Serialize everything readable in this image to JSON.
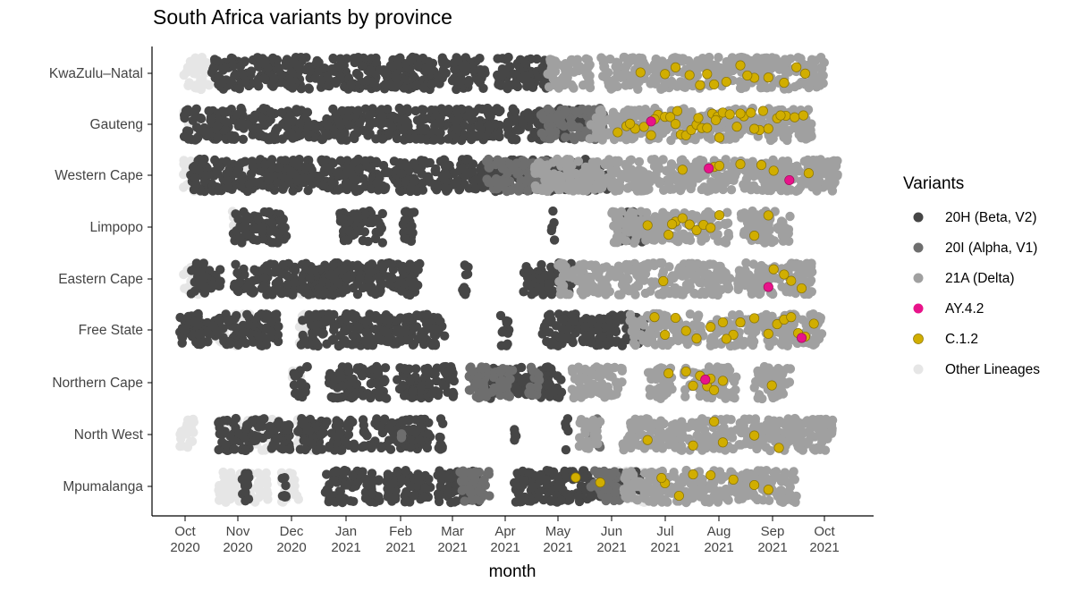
{
  "chart_data": {
    "type": "scatter",
    "title": "South Africa variants by province",
    "xlabel": "month",
    "ylabel": "",
    "x_ticks": [
      {
        "date": "2020-10-01",
        "label": [
          "Oct",
          "2020"
        ]
      },
      {
        "date": "2020-11-01",
        "label": [
          "Nov",
          "2020"
        ]
      },
      {
        "date": "2020-12-01",
        "label": [
          "Dec",
          "2020"
        ]
      },
      {
        "date": "2021-01-01",
        "label": [
          "Jan",
          "2021"
        ]
      },
      {
        "date": "2021-02-01",
        "label": [
          "Feb",
          "2021"
        ]
      },
      {
        "date": "2021-03-01",
        "label": [
          "Mar",
          "2021"
        ]
      },
      {
        "date": "2021-04-01",
        "label": [
          "Apr",
          "2021"
        ]
      },
      {
        "date": "2021-05-01",
        "label": [
          "May",
          "2021"
        ]
      },
      {
        "date": "2021-06-01",
        "label": [
          "Jun",
          "2021"
        ]
      },
      {
        "date": "2021-07-01",
        "label": [
          "Jul",
          "2021"
        ]
      },
      {
        "date": "2021-08-01",
        "label": [
          "Aug",
          "2021"
        ]
      },
      {
        "date": "2021-09-01",
        "label": [
          "Sep",
          "2021"
        ]
      },
      {
        "date": "2021-10-01",
        "label": [
          "Oct",
          "2021"
        ]
      }
    ],
    "xlim": [
      "2020-09-10",
      "2021-10-30"
    ],
    "categories": [
      "KwaZulu–Natal",
      "Gauteng",
      "Western Cape",
      "Limpopo",
      "Eastern Cape",
      "Free State",
      "Northern Cape",
      "North West",
      "Mpumalanga"
    ],
    "grid": false,
    "legend_position": "right",
    "legend_title": "Variants",
    "series": [
      {
        "name": "20H (Beta, V2)",
        "color": "#464646"
      },
      {
        "name": "20I (Alpha, V1)",
        "color": "#6e6e6e"
      },
      {
        "name": "21A (Delta)",
        "color": "#a0a0a0"
      },
      {
        "name": "AY.4.2",
        "color": "#e8138a"
      },
      {
        "name": "C.1.2",
        "color": "#d1ae00"
      },
      {
        "name": "Other Lineages",
        "color": "#e6e6e6"
      }
    ],
    "points_by_province": {
      "KwaZulu–Natal": {
        "Other Lineages": [
          [
            "2020-09-30",
            "2020-10-16"
          ]
        ],
        "20H (Beta, V2)": [
          [
            "2020-10-16",
            "2021-03-22"
          ],
          [
            "2021-03-28",
            "2021-04-26"
          ]
        ],
        "21A (Delta)": [
          [
            "2021-04-26",
            "2021-05-21"
          ],
          [
            "2021-05-26",
            "2021-10-01"
          ]
        ],
        "C.1.2": [
          "2021-07-02",
          "2021-07-08",
          "2021-07-16",
          "2021-07-22",
          "2021-07-30",
          "2021-08-06",
          "2021-08-14",
          "2021-08-22",
          "2021-08-30",
          "2021-09-08",
          "2021-09-15",
          "2021-06-18",
          "2021-07-26",
          "2021-08-18",
          "2021-09-20"
        ]
      },
      "Gauteng": {
        "Other Lineages": [
          [
            "2020-09-30",
            "2020-10-06"
          ]
        ],
        "20H (Beta, V2)": [
          [
            "2020-09-30",
            "2021-03-30"
          ],
          [
            "2021-04-03",
            "2021-05-20"
          ]
        ],
        "20I (Alpha, V1)": [
          [
            "2021-04-22",
            "2021-05-28"
          ]
        ],
        "21A (Delta)": [
          [
            "2021-05-20",
            "2021-09-24"
          ]
        ],
        "C.1.2": [
          "2021-06-05",
          "2021-06-10",
          "2021-06-15",
          "2021-06-20",
          "2021-06-24",
          "2021-06-28",
          "2021-07-02",
          "2021-07-05",
          "2021-07-08",
          "2021-07-11",
          "2021-07-14",
          "2021-07-17",
          "2021-07-20",
          "2021-07-23",
          "2021-07-26",
          "2021-07-29",
          "2021-08-01",
          "2021-08-04",
          "2021-08-08",
          "2021-08-12",
          "2021-08-16",
          "2021-08-20",
          "2021-08-25",
          "2021-08-30",
          "2021-09-04",
          "2021-09-09",
          "2021-09-14",
          "2021-09-19",
          "2021-06-12",
          "2021-06-26",
          "2021-07-09",
          "2021-07-21",
          "2021-08-02",
          "2021-08-14",
          "2021-08-27",
          "2021-09-06",
          "2021-07-31",
          "2021-08-22"
        ],
        "AY.4.2": [
          "2021-06-24"
        ]
      },
      "Western Cape": {
        "Other Lineages": [
          [
            "2020-09-30",
            "2020-10-10"
          ],
          [
            "2020-10-28",
            "2020-11-10"
          ]
        ],
        "20H (Beta, V2)": [
          [
            "2020-10-04",
            "2021-05-30"
          ]
        ],
        "20I (Alpha, V1)": [
          [
            "2021-03-22",
            "2021-04-25"
          ]
        ],
        "21A (Delta)": [
          [
            "2021-04-18",
            "2021-10-10"
          ]
        ],
        "C.1.2": [
          "2021-07-12",
          "2021-07-30",
          "2021-08-02",
          "2021-08-14",
          "2021-08-26",
          "2021-09-02",
          "2021-09-22"
        ],
        "AY.4.2": [
          "2021-07-27",
          "2021-09-11"
        ]
      },
      "Limpopo": {
        "Other Lineages": [
          [
            "2020-10-28",
            "2020-11-04"
          ]
        ],
        "20H (Beta, V2)": [
          [
            "2020-10-28",
            "2020-11-28"
          ],
          [
            "2020-12-28",
            "2021-01-22"
          ],
          [
            "2021-02-02",
            "2021-02-10"
          ],
          [
            "2021-06-05",
            "2021-06-20"
          ],
          [
            "2021-04-28",
            "2021-04-30"
          ]
        ],
        "21A (Delta)": [
          [
            "2021-06-01",
            "2021-08-08"
          ],
          [
            "2021-08-14",
            "2021-09-12"
          ]
        ],
        "C.1.2": [
          "2021-06-22",
          "2021-07-04",
          "2021-07-08",
          "2021-07-12",
          "2021-07-16",
          "2021-07-20",
          "2021-07-24",
          "2021-07-28",
          "2021-08-02",
          "2021-08-22",
          "2021-08-30",
          "2021-07-06"
        ]
      },
      "Eastern Cape": {
        "Other Lineages": [
          [
            "2020-09-30",
            "2020-10-10"
          ],
          [
            "2020-11-28",
            "2020-12-08"
          ]
        ],
        "20H (Beta, V2)": [
          [
            "2020-10-04",
            "2020-10-22"
          ],
          [
            "2020-10-28",
            "2020-12-28"
          ],
          [
            "2020-12-22",
            "2021-02-12"
          ],
          [
            "2021-03-08",
            "2021-03-12"
          ],
          [
            "2021-04-12",
            "2021-05-10"
          ]
        ],
        "21A (Delta)": [
          [
            "2021-05-02",
            "2021-08-08"
          ],
          [
            "2021-08-12",
            "2021-09-24"
          ]
        ],
        "C.1.2": [
          "2021-07-01",
          "2021-09-02",
          "2021-09-08",
          "2021-09-12",
          "2021-09-18"
        ],
        "AY.4.2": [
          "2021-08-30"
        ]
      },
      "Free State": {
        "Other Lineages": [
          [
            "2020-10-20",
            "2020-11-08"
          ],
          [
            "2020-12-05",
            "2020-12-12"
          ]
        ],
        "20H (Beta, V2)": [
          [
            "2020-09-28",
            "2020-11-24"
          ],
          [
            "2020-12-06",
            "2021-02-28"
          ],
          [
            "2021-03-30",
            "2021-04-04"
          ],
          [
            "2021-04-22",
            "2021-05-18"
          ],
          [
            "2021-05-18",
            "2021-06-22"
          ]
        ],
        "21A (Delta)": [
          [
            "2021-06-12",
            "2021-07-24"
          ],
          [
            "2021-07-28",
            "2021-09-30"
          ]
        ],
        "C.1.2": [
          "2021-06-26",
          "2021-07-02",
          "2021-07-08",
          "2021-07-14",
          "2021-07-28",
          "2021-08-04",
          "2021-08-10",
          "2021-08-14",
          "2021-08-22",
          "2021-08-30",
          "2021-09-04",
          "2021-09-08",
          "2021-09-12",
          "2021-09-16",
          "2021-09-20",
          "2021-09-25",
          "2021-07-20",
          "2021-08-06"
        ],
        "AY.4.2": [
          "2021-09-18"
        ]
      },
      "Northern Cape": {
        "Other Lineages": [
          [
            "2020-12-01",
            "2020-12-06"
          ]
        ],
        "20H (Beta, V2)": [
          [
            "2020-12-02",
            "2020-12-10"
          ],
          [
            "2020-12-22",
            "2021-01-24"
          ],
          [
            "2021-01-30",
            "2021-03-04"
          ],
          [
            "2021-03-18",
            "2021-04-06"
          ],
          [
            "2021-04-08",
            "2021-05-05"
          ]
        ],
        "20I (Alpha, V1)": [
          [
            "2021-03-12",
            "2021-04-06"
          ],
          [
            "2021-04-14",
            "2021-04-22"
          ]
        ],
        "21A (Delta)": [
          [
            "2021-05-10",
            "2021-06-08"
          ],
          [
            "2021-06-22",
            "2021-07-06"
          ],
          [
            "2021-07-12",
            "2021-08-12"
          ],
          [
            "2021-08-22",
            "2021-09-12"
          ]
        ],
        "C.1.2": [
          "2021-07-04",
          "2021-07-18",
          "2021-07-22",
          "2021-07-26",
          "2021-07-30",
          "2021-08-04",
          "2021-09-01",
          "2021-07-14",
          "2021-07-28"
        ],
        "AY.4.2": [
          "2021-07-25"
        ]
      },
      "North West": {
        "Other Lineages": [
          [
            "2020-09-28",
            "2020-10-06"
          ],
          [
            "2020-10-25",
            "2020-11-20"
          ],
          [
            "2020-12-04",
            "2020-12-16"
          ]
        ],
        "20H (Beta, V2)": [
          [
            "2020-10-20",
            "2020-11-30"
          ],
          [
            "2020-12-04",
            "2021-01-06"
          ],
          [
            "2021-01-10",
            "2021-02-18"
          ],
          [
            "2021-02-22",
            "2021-02-26"
          ],
          [
            "2021-04-06",
            "2021-04-08"
          ],
          [
            "2021-05-06",
            "2021-05-08"
          ]
        ],
        "20I (Alpha, V1)": [
          [
            "2021-02-01",
            "2021-02-02"
          ],
          [
            "2021-05-20",
            "2021-05-26"
          ]
        ],
        "21A (Delta)": [
          [
            "2021-05-14",
            "2021-05-26"
          ],
          [
            "2021-06-08",
            "2021-06-14"
          ],
          [
            "2021-06-15",
            "2021-10-06"
          ]
        ],
        "C.1.2": [
          "2021-06-22",
          "2021-07-18",
          "2021-07-30",
          "2021-08-04",
          "2021-08-22",
          "2021-09-05"
        ]
      },
      "Mpumalanga": {
        "Other Lineages": [
          [
            "2020-10-20",
            "2020-11-18"
          ],
          [
            "2020-11-25",
            "2020-12-05"
          ],
          [
            "2021-06-02",
            "2021-06-22"
          ]
        ],
        "20H (Beta, V2)": [
          [
            "2020-11-02",
            "2020-11-08"
          ],
          [
            "2020-11-25",
            "2020-11-28"
          ],
          [
            "2020-12-20",
            "2021-01-20"
          ],
          [
            "2021-01-24",
            "2021-02-18"
          ],
          [
            "2021-02-22",
            "2021-03-18"
          ],
          [
            "2021-04-06",
            "2021-05-28"
          ],
          [
            "2021-06-05",
            "2021-06-18"
          ]
        ],
        "20I (Alpha, V1)": [
          [
            "2021-03-06",
            "2021-03-24"
          ],
          [
            "2021-05-20",
            "2021-06-06"
          ]
        ],
        "21A (Delta)": [
          [
            "2021-06-08",
            "2021-09-15"
          ]
        ],
        "C.1.2": [
          "2021-05-12",
          "2021-05-26",
          "2021-07-02",
          "2021-07-10",
          "2021-07-18",
          "2021-07-28",
          "2021-08-10",
          "2021-08-22",
          "2021-08-30",
          "2021-06-30"
        ]
      }
    }
  }
}
